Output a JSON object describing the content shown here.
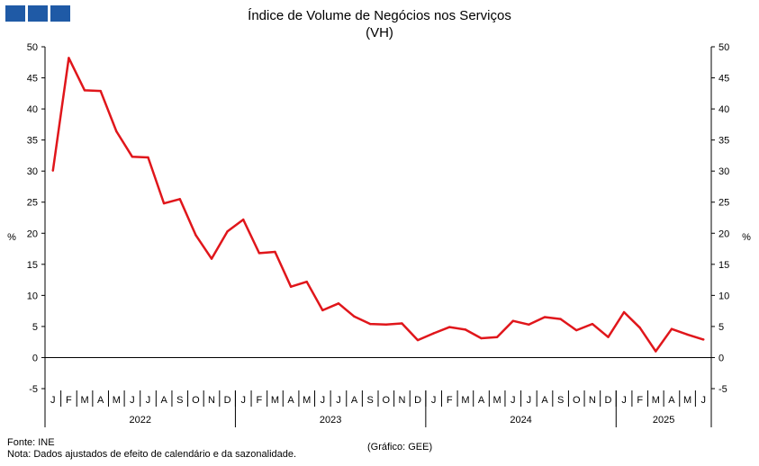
{
  "header": {
    "logo_icon": "gee-logo-icon"
  },
  "chart_data": {
    "type": "line",
    "title": "Índice de Volume de Negócios nos Serviços",
    "subtitle": "(VH)",
    "ylabel_left": "%",
    "ylabel_right": "%",
    "ylim": [
      -5,
      50
    ],
    "yticks": [
      -5,
      0,
      5,
      10,
      15,
      20,
      25,
      30,
      35,
      40,
      45,
      50
    ],
    "grid": false,
    "month_labels": [
      "J",
      "F",
      "M",
      "A",
      "M",
      "J",
      "J",
      "A",
      "S",
      "O",
      "N",
      "D",
      "J",
      "F",
      "M",
      "A",
      "M",
      "J",
      "J",
      "A",
      "S",
      "O",
      "N",
      "D",
      "J",
      "F",
      "M",
      "A",
      "M",
      "J",
      "J",
      "A",
      "S",
      "O",
      "N",
      "D",
      "J",
      "F",
      "M",
      "A",
      "M",
      "J"
    ],
    "years": [
      {
        "label": "2022",
        "start": 0,
        "end": 12
      },
      {
        "label": "2023",
        "start": 12,
        "end": 24
      },
      {
        "label": "2024",
        "start": 24,
        "end": 36
      },
      {
        "label": "2025",
        "start": 36,
        "end": 42
      }
    ],
    "series": [
      {
        "color": "#e0161b",
        "values": [
          30.1,
          48.2,
          43.0,
          42.9,
          36.4,
          32.3,
          32.2,
          24.8,
          25.5,
          19.7,
          15.9,
          20.3,
          22.2,
          16.8,
          17.0,
          11.4,
          12.2,
          7.6,
          8.7,
          6.6,
          5.4,
          5.3,
          5.5,
          2.8,
          3.9,
          4.9,
          4.5,
          3.1,
          3.3,
          5.9,
          5.3,
          6.5,
          6.2,
          4.4,
          5.4,
          3.3,
          7.3,
          4.8,
          1.0,
          4.6,
          3.7,
          2.9
        ]
      }
    ]
  },
  "footer": {
    "source": "Fonte: INE",
    "note": "Nota: Dados ajustados de efeito de calendário e da sazonalidade.",
    "credit": "(Gráfico: GEE)"
  }
}
